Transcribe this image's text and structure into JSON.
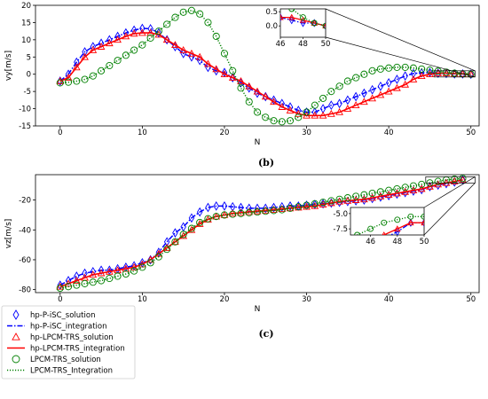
{
  "chart_data": [
    {
      "type": "scatter",
      "panel": "b",
      "caption": "(b)",
      "xlabel": "N",
      "ylabel": "vy[m/s]",
      "xlim": [
        -3,
        51
      ],
      "ylim": [
        -15,
        20
      ],
      "xticks": [
        0,
        10,
        20,
        30,
        40,
        50
      ],
      "yticks": [
        -15,
        -10,
        -5,
        0,
        5,
        10,
        15,
        20
      ],
      "grid": false,
      "inset": {
        "xlim": [
          46,
          50
        ],
        "ylim": [
          -0.4,
          0.6
        ],
        "xticks": [
          46,
          48,
          50
        ],
        "yticks": [
          0.0,
          0.5
        ]
      },
      "series": [
        {
          "name": "hp-P-iSC_solution",
          "style": "diamond",
          "color": "#0000ff",
          "y": [
            -2,
            0,
            3.5,
            6.5,
            8,
            9,
            10,
            11,
            12,
            12.8,
            13.3,
            13.2,
            12,
            10,
            8,
            6,
            5,
            4,
            2,
            1,
            0.5,
            -1,
            -2.5,
            -4,
            -5.5,
            -6.5,
            -7.5,
            -8.5,
            -9.5,
            -10.5,
            -11,
            -11,
            -10,
            -9,
            -8.5,
            -7.5,
            -6.5,
            -5.5,
            -4.5,
            -3.5,
            -2.5,
            -1.5,
            -0.5,
            0.2,
            0.4,
            0.5,
            0.3,
            0.2,
            0.1,
            0.1,
            0
          ]
        },
        {
          "name": "hp-P-iSC_integration",
          "style": "dashdot",
          "color": "#0000ff",
          "y": [
            -2,
            0,
            3.5,
            6.5,
            8,
            9,
            10,
            11,
            12,
            12.8,
            13.3,
            13.2,
            12,
            10,
            8,
            6,
            5,
            4,
            2,
            1,
            0.5,
            -1,
            -2.5,
            -4,
            -5.5,
            -6.5,
            -7.5,
            -8.5,
            -9.5,
            -10.5,
            -11,
            -11,
            -10,
            -9,
            -8.5,
            -7.5,
            -6.5,
            -5.5,
            -4.5,
            -3.5,
            -2.5,
            -1.5,
            -0.5,
            0.2,
            0.4,
            0.5,
            0.3,
            0.2,
            0.1,
            0.1,
            0
          ]
        },
        {
          "name": "hp-LPCM-TRS_solution",
          "style": "triangle",
          "color": "#ff0000",
          "y": [
            -2,
            -1,
            2,
            5,
            7,
            8,
            9,
            10,
            11,
            11.8,
            12,
            12,
            11.5,
            10,
            8.5,
            7,
            6,
            5,
            3,
            1.5,
            0,
            -1,
            -2,
            -3.5,
            -5,
            -6.5,
            -8,
            -9.5,
            -10.5,
            -11.5,
            -12,
            -12,
            -12,
            -11.5,
            -11,
            -10,
            -9,
            -8,
            -7,
            -6,
            -5,
            -4,
            -3,
            -1.5,
            -0.5,
            0,
            0.3,
            0.3,
            0.2,
            0.1,
            0
          ]
        },
        {
          "name": "hp-LPCM-TRS_integration",
          "style": "solid",
          "color": "#ff0000",
          "y": [
            -2,
            -1,
            2,
            5,
            7,
            8,
            9,
            10,
            11,
            11.8,
            12,
            12,
            11.5,
            10,
            8.5,
            7,
            6,
            5,
            3,
            1.5,
            0,
            -1,
            -2,
            -3.5,
            -5,
            -6.5,
            -8,
            -9.5,
            -10.5,
            -11.5,
            -12,
            -12,
            -12,
            -11.5,
            -11,
            -10,
            -9,
            -8,
            -7,
            -6,
            -5,
            -4,
            -3,
            -1.5,
            -0.5,
            0,
            0.3,
            0.3,
            0.2,
            0.1,
            0
          ]
        },
        {
          "name": "LPCM-TRS_solution",
          "style": "circle",
          "color": "#008000",
          "y": [
            -2.5,
            -2.3,
            -2,
            -1.5,
            -0.5,
            1,
            2.5,
            4,
            5.5,
            7,
            8.5,
            10.5,
            12.5,
            14.5,
            16.5,
            18,
            18.5,
            17.5,
            15,
            11,
            6,
            1,
            -4,
            -8,
            -11,
            -12.5,
            -13.5,
            -13.8,
            -13.5,
            -12.5,
            -11,
            -9,
            -7,
            -5,
            -3.5,
            -2,
            -1,
            0,
            1,
            1.5,
            1.8,
            2,
            2,
            1.8,
            1.5,
            1.2,
            0.9,
            0.6,
            0.3,
            0.1,
            0
          ]
        },
        {
          "name": "LPCM-TRS_Integration",
          "style": "dotted",
          "color": "#008000",
          "y": [
            -2.5,
            -2.3,
            -2,
            -1.5,
            -0.5,
            1,
            2.5,
            4,
            5.5,
            7,
            8.5,
            10.5,
            12.5,
            14.5,
            16.5,
            18,
            18.5,
            17.5,
            15,
            11,
            6,
            1,
            -4,
            -8,
            -11,
            -12.5,
            -13.5,
            -13.8,
            -13.5,
            -12.5,
            -11,
            -9,
            -7,
            -5,
            -3.5,
            -2,
            -1,
            0,
            1,
            1.5,
            1.8,
            2,
            2,
            1.8,
            1.5,
            1.2,
            0.9,
            0.6,
            0.3,
            0.1,
            0
          ]
        }
      ]
    },
    {
      "type": "scatter",
      "panel": "c",
      "caption": "(c)",
      "xlabel": "N",
      "ylabel": "vz[m/s]",
      "xlim": [
        -3,
        51
      ],
      "ylim": [
        -82,
        -3
      ],
      "xticks": [
        0,
        10,
        20,
        30,
        40,
        50
      ],
      "yticks": [
        -80,
        -60,
        -40,
        -20
      ],
      "grid": false,
      "inset": {
        "xlim": [
          44.5,
          50
        ],
        "ylim": [
          -8.5,
          -4
        ],
        "xticks": [
          46,
          48,
          50
        ],
        "yticks": [
          -5.0,
          -7.5
        ]
      },
      "series": [
        {
          "name": "hp-P-iSC_solution",
          "style": "diamond",
          "color": "#0000ff",
          "y": [
            -77,
            -74,
            -71,
            -69,
            -68,
            -67,
            -67,
            -66,
            -65,
            -64,
            -62,
            -60,
            -55,
            -48,
            -42,
            -38,
            -32,
            -28,
            -25,
            -24,
            -24,
            -24.5,
            -25,
            -25.5,
            -25.5,
            -25.5,
            -25,
            -24.5,
            -24,
            -24,
            -23.5,
            -23,
            -22.5,
            -22,
            -21.5,
            -21,
            -20.5,
            -20,
            -19,
            -18,
            -17,
            -16,
            -15,
            -14,
            -13,
            -11,
            -10,
            -9,
            -8,
            -6.5
          ]
        },
        {
          "name": "hp-P-iSC_integration",
          "style": "dashdot",
          "color": "#0000ff",
          "y": [
            -77,
            -74,
            -71,
            -69,
            -68,
            -67,
            -67,
            -66,
            -65,
            -64,
            -62,
            -60,
            -55,
            -48,
            -42,
            -38,
            -32,
            -28,
            -25,
            -24,
            -24,
            -24.5,
            -25,
            -25.5,
            -25.5,
            -25.5,
            -25,
            -24.5,
            -24,
            -24,
            -23.5,
            -23,
            -22.5,
            -22,
            -21.5,
            -21,
            -20.5,
            -20,
            -19,
            -18,
            -17,
            -16,
            -15,
            -14,
            -13,
            -11,
            -10,
            -9,
            -8,
            -6.5
          ]
        },
        {
          "name": "hp-LPCM-TRS_solution",
          "style": "triangle",
          "color": "#ff0000",
          "y": [
            -78,
            -76,
            -74,
            -72,
            -70,
            -69,
            -68,
            -67,
            -66,
            -65,
            -63,
            -60,
            -56,
            -52,
            -48,
            -44,
            -40,
            -36,
            -33,
            -31,
            -30,
            -29,
            -28.5,
            -28,
            -27.5,
            -27,
            -26.5,
            -26,
            -25.5,
            -25,
            -24.5,
            -24,
            -23,
            -22,
            -21,
            -20.5,
            -20,
            -19.5,
            -18.5,
            -17.5,
            -16.5,
            -15.5,
            -14.5,
            -13.5,
            -12.5,
            -11,
            -9.5,
            -8.5,
            -7.5,
            -6.5
          ]
        },
        {
          "name": "hp-LPCM-TRS_integration",
          "style": "solid",
          "color": "#ff0000",
          "y": [
            -78,
            -76,
            -74,
            -72,
            -70,
            -69,
            -68,
            -67,
            -66,
            -65,
            -63,
            -60,
            -56,
            -52,
            -48,
            -44,
            -40,
            -36,
            -33,
            -31,
            -30,
            -29,
            -28.5,
            -28,
            -27.5,
            -27,
            -26.5,
            -26,
            -25.5,
            -25,
            -24.5,
            -24,
            -23,
            -22,
            -21,
            -20.5,
            -20,
            -19.5,
            -18.5,
            -17.5,
            -16.5,
            -15.5,
            -14.5,
            -13.5,
            -12.5,
            -11,
            -9.5,
            -8.5,
            -7.5,
            -6.5
          ]
        },
        {
          "name": "LPCM-TRS_solution",
          "style": "circle",
          "color": "#008000",
          "y": [
            -79,
            -78,
            -77,
            -76,
            -75,
            -74,
            -72.5,
            -71,
            -69.5,
            -67.5,
            -65,
            -62,
            -58,
            -53,
            -48,
            -43,
            -39,
            -35,
            -32.5,
            -31,
            -30,
            -29.5,
            -29,
            -28.5,
            -28,
            -27.5,
            -27,
            -26.5,
            -25.5,
            -24.5,
            -23.5,
            -22.5,
            -21.5,
            -20.5,
            -19.5,
            -18.5,
            -17.5,
            -16.5,
            -15.5,
            -14.5,
            -13.5,
            -12.5,
            -11.5,
            -10.5,
            -9.5,
            -8.5,
            -7.5,
            -6.5,
            -6,
            -5.5
          ]
        },
        {
          "name": "LPCM-TRS_Integration",
          "style": "dotted",
          "color": "#008000",
          "y": [
            -79,
            -78,
            -77,
            -76,
            -75,
            -74,
            -72.5,
            -71,
            -69.5,
            -67.5,
            -65,
            -62,
            -58,
            -53,
            -48,
            -43,
            -39,
            -35,
            -32.5,
            -31,
            -30,
            -29.5,
            -29,
            -28.5,
            -28,
            -27.5,
            -27,
            -26.5,
            -25.5,
            -24.5,
            -23.5,
            -22.5,
            -21.5,
            -20.5,
            -19.5,
            -18.5,
            -17.5,
            -16.5,
            -15.5,
            -14.5,
            -13.5,
            -12.5,
            -11.5,
            -10.5,
            -9.5,
            -8.5,
            -7.5,
            -6.5,
            -6,
            -5.5
          ]
        }
      ]
    }
  ],
  "legend": {
    "placement": "lower-left",
    "entries": [
      {
        "label": "hp-P-iSC_solution",
        "style": "diamond",
        "color": "#0000ff"
      },
      {
        "label": "hp-P-iSC_integration",
        "style": "dashdot",
        "color": "#0000ff"
      },
      {
        "label": "hp-LPCM-TRS_solution",
        "style": "triangle",
        "color": "#ff0000"
      },
      {
        "label": "hp-LPCM-TRS_integration",
        "style": "solid",
        "color": "#ff0000"
      },
      {
        "label": "LPCM-TRS_solution",
        "style": "circle",
        "color": "#008000"
      },
      {
        "label": "LPCM-TRS_Integration",
        "style": "dotted",
        "color": "#008000"
      }
    ]
  }
}
